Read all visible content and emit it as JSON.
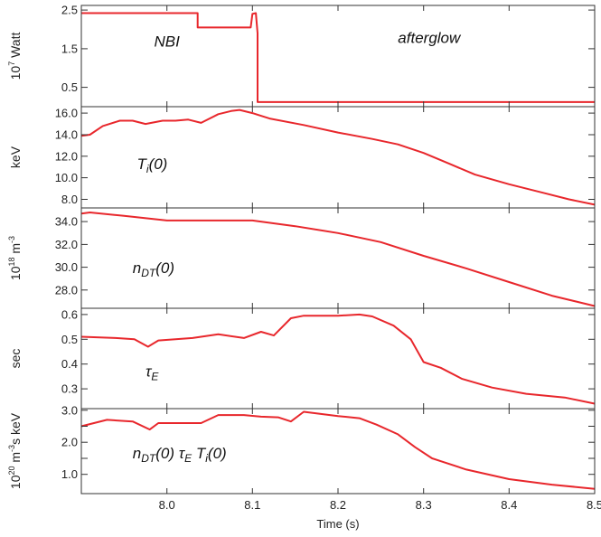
{
  "x_axis": {
    "label": "Time (s)",
    "range": [
      7.9,
      8.5
    ],
    "ticks": [
      8.0,
      8.1,
      8.2,
      8.3,
      8.4,
      8.5
    ],
    "tick_labels": [
      "8.0",
      "8.1",
      "8.2",
      "8.3",
      "8.4",
      "8.5"
    ]
  },
  "line_color": "#e8272c",
  "panels": [
    {
      "ylabel_parts": [
        {
          "t": "10"
        },
        {
          "t": "7",
          "s": "sup"
        },
        {
          "t": " Watt"
        }
      ],
      "ylim": [
        0.0,
        2.62
      ],
      "yticks": [
        0.5,
        1.5,
        2.5
      ],
      "ytick_labels": [
        "0.5",
        "1.5",
        "2.5"
      ],
      "annotations": [
        {
          "parts": [
            {
              "t": "NBI"
            }
          ],
          "x": 7.985,
          "y": 1.55
        },
        {
          "parts": [
            {
              "t": "afterglow"
            }
          ],
          "x": 8.27,
          "y": 1.65
        }
      ]
    },
    {
      "ylabel_parts": [
        {
          "t": "keV"
        }
      ],
      "ylim": [
        7.2,
        16.6
      ],
      "yticks": [
        8.0,
        10.0,
        12.0,
        14.0,
        16.0
      ],
      "ytick_labels": [
        "8.0",
        "10.0",
        "12.0",
        "14.0",
        "16.0"
      ],
      "annotations": [
        {
          "parts": [
            {
              "t": "T"
            },
            {
              "t": "i",
              "s": "sub"
            },
            {
              "t": "(0)"
            }
          ],
          "x": 7.965,
          "y": 10.8
        }
      ]
    },
    {
      "ylabel_parts": [
        {
          "t": "10"
        },
        {
          "t": "18",
          "s": "sup"
        },
        {
          "t": " m"
        },
        {
          "t": "-3",
          "s": "sup"
        }
      ],
      "ylim": [
        26.4,
        35.2
      ],
      "yticks": [
        28.0,
        30.0,
        32.0,
        34.0
      ],
      "ytick_labels": [
        "28.0",
        "30.0",
        "32.0",
        "34.0"
      ],
      "annotations": [
        {
          "parts": [
            {
              "t": "n"
            },
            {
              "t": "DT",
              "s": "sub"
            },
            {
              "t": "(0)"
            }
          ],
          "x": 7.96,
          "y": 29.5
        }
      ]
    },
    {
      "ylabel_parts": [
        {
          "t": "sec"
        }
      ],
      "ylim": [
        0.22,
        0.625
      ],
      "yticks": [
        0.3,
        0.4,
        0.5,
        0.6
      ],
      "ytick_labels": [
        "0.3",
        "0.4",
        "0.5",
        "0.6"
      ],
      "annotations": [
        {
          "parts": [
            {
              "t": "τ"
            },
            {
              "t": "E",
              "s": "sub"
            }
          ],
          "x": 7.975,
          "y": 0.35
        }
      ]
    },
    {
      "ylabel_parts": [
        {
          "t": "10"
        },
        {
          "t": "20",
          "s": "sup"
        },
        {
          "t": " m"
        },
        {
          "t": "-3",
          "s": "sup"
        },
        {
          "t": "s keV"
        }
      ],
      "ylim": [
        0.4,
        3.05
      ],
      "yticks": [
        1.0,
        1.5,
        2.0,
        2.5,
        3.0
      ],
      "ytick_labels": [
        "1.0",
        "",
        "2.0",
        "",
        "3.0"
      ],
      "annotations": [
        {
          "parts": [
            {
              "t": "n"
            },
            {
              "t": "DT",
              "s": "sub"
            },
            {
              "t": "(0) τ"
            },
            {
              "t": "E",
              "s": "sub"
            },
            {
              "t": " T"
            },
            {
              "t": "i",
              "s": "sub"
            },
            {
              "t": "(0)"
            }
          ],
          "x": 7.96,
          "y": 1.5
        }
      ]
    }
  ],
  "chart_data": [
    {
      "type": "line",
      "xlabel": "Time (s)",
      "ylabel": "10^7 Watt",
      "xlim": [
        7.9,
        8.5
      ],
      "ylim": [
        0.0,
        2.62
      ],
      "series": [
        {
          "x": [
            7.9,
            8.036,
            8.036,
            8.098,
            8.1,
            8.104,
            8.106,
            8.106,
            8.5
          ],
          "y": [
            2.42,
            2.42,
            2.05,
            2.05,
            2.4,
            2.42,
            1.9,
            0.12,
            0.12
          ]
        }
      ]
    },
    {
      "type": "line",
      "xlabel": "Time (s)",
      "ylabel": "keV",
      "xlim": [
        7.9,
        8.5
      ],
      "ylim": [
        7.2,
        16.6
      ],
      "series": [
        {
          "x": [
            7.9,
            7.91,
            7.925,
            7.945,
            7.96,
            7.975,
            7.995,
            8.01,
            8.025,
            8.04,
            8.06,
            8.075,
            8.085,
            8.1,
            8.12,
            8.16,
            8.2,
            8.24,
            8.27,
            8.3,
            8.33,
            8.36,
            8.4,
            8.44,
            8.47,
            8.5
          ],
          "y": [
            13.9,
            14.0,
            14.8,
            15.3,
            15.3,
            15.0,
            15.3,
            15.3,
            15.4,
            15.1,
            15.9,
            16.2,
            16.3,
            16.0,
            15.5,
            14.9,
            14.2,
            13.6,
            13.1,
            12.3,
            11.3,
            10.3,
            9.4,
            8.6,
            8.0,
            7.5
          ]
        }
      ]
    },
    {
      "type": "line",
      "xlabel": "Time (s)",
      "ylabel": "10^18 m^-3",
      "xlim": [
        7.9,
        8.5
      ],
      "ylim": [
        26.4,
        35.2
      ],
      "series": [
        {
          "x": [
            7.9,
            7.91,
            7.95,
            8.0,
            8.05,
            8.1,
            8.15,
            8.2,
            8.25,
            8.3,
            8.35,
            8.4,
            8.45,
            8.5
          ],
          "y": [
            34.7,
            34.8,
            34.5,
            34.1,
            34.1,
            34.1,
            33.6,
            33.0,
            32.2,
            31.0,
            29.9,
            28.7,
            27.5,
            26.6
          ]
        }
      ]
    },
    {
      "type": "line",
      "xlabel": "Time (s)",
      "ylabel": "sec",
      "xlim": [
        7.9,
        8.5
      ],
      "ylim": [
        0.22,
        0.625
      ],
      "series": [
        {
          "x": [
            7.9,
            7.94,
            7.962,
            7.978,
            7.99,
            8.03,
            8.06,
            8.09,
            8.11,
            8.125,
            8.145,
            8.16,
            8.2,
            8.225,
            8.24,
            8.265,
            8.285,
            8.3,
            8.32,
            8.345,
            8.38,
            8.42,
            8.465,
            8.5
          ],
          "y": [
            0.51,
            0.505,
            0.5,
            0.47,
            0.495,
            0.505,
            0.52,
            0.505,
            0.53,
            0.515,
            0.585,
            0.595,
            0.595,
            0.6,
            0.592,
            0.555,
            0.5,
            0.408,
            0.385,
            0.34,
            0.305,
            0.28,
            0.265,
            0.24
          ]
        }
      ]
    },
    {
      "type": "line",
      "xlabel": "Time (s)",
      "ylabel": "10^20 m^-3 s keV",
      "xlim": [
        7.9,
        8.5
      ],
      "ylim": [
        0.4,
        3.05
      ],
      "series": [
        {
          "x": [
            7.9,
            7.93,
            7.96,
            7.98,
            7.99,
            8.01,
            8.04,
            8.06,
            8.09,
            8.11,
            8.13,
            8.145,
            8.16,
            8.2,
            8.225,
            8.245,
            8.27,
            8.29,
            8.31,
            8.35,
            8.4,
            8.45,
            8.5
          ],
          "y": [
            2.5,
            2.7,
            2.65,
            2.4,
            2.6,
            2.6,
            2.6,
            2.85,
            2.85,
            2.8,
            2.78,
            2.65,
            2.95,
            2.82,
            2.75,
            2.55,
            2.25,
            1.85,
            1.5,
            1.15,
            0.85,
            0.68,
            0.55
          ]
        }
      ]
    }
  ]
}
